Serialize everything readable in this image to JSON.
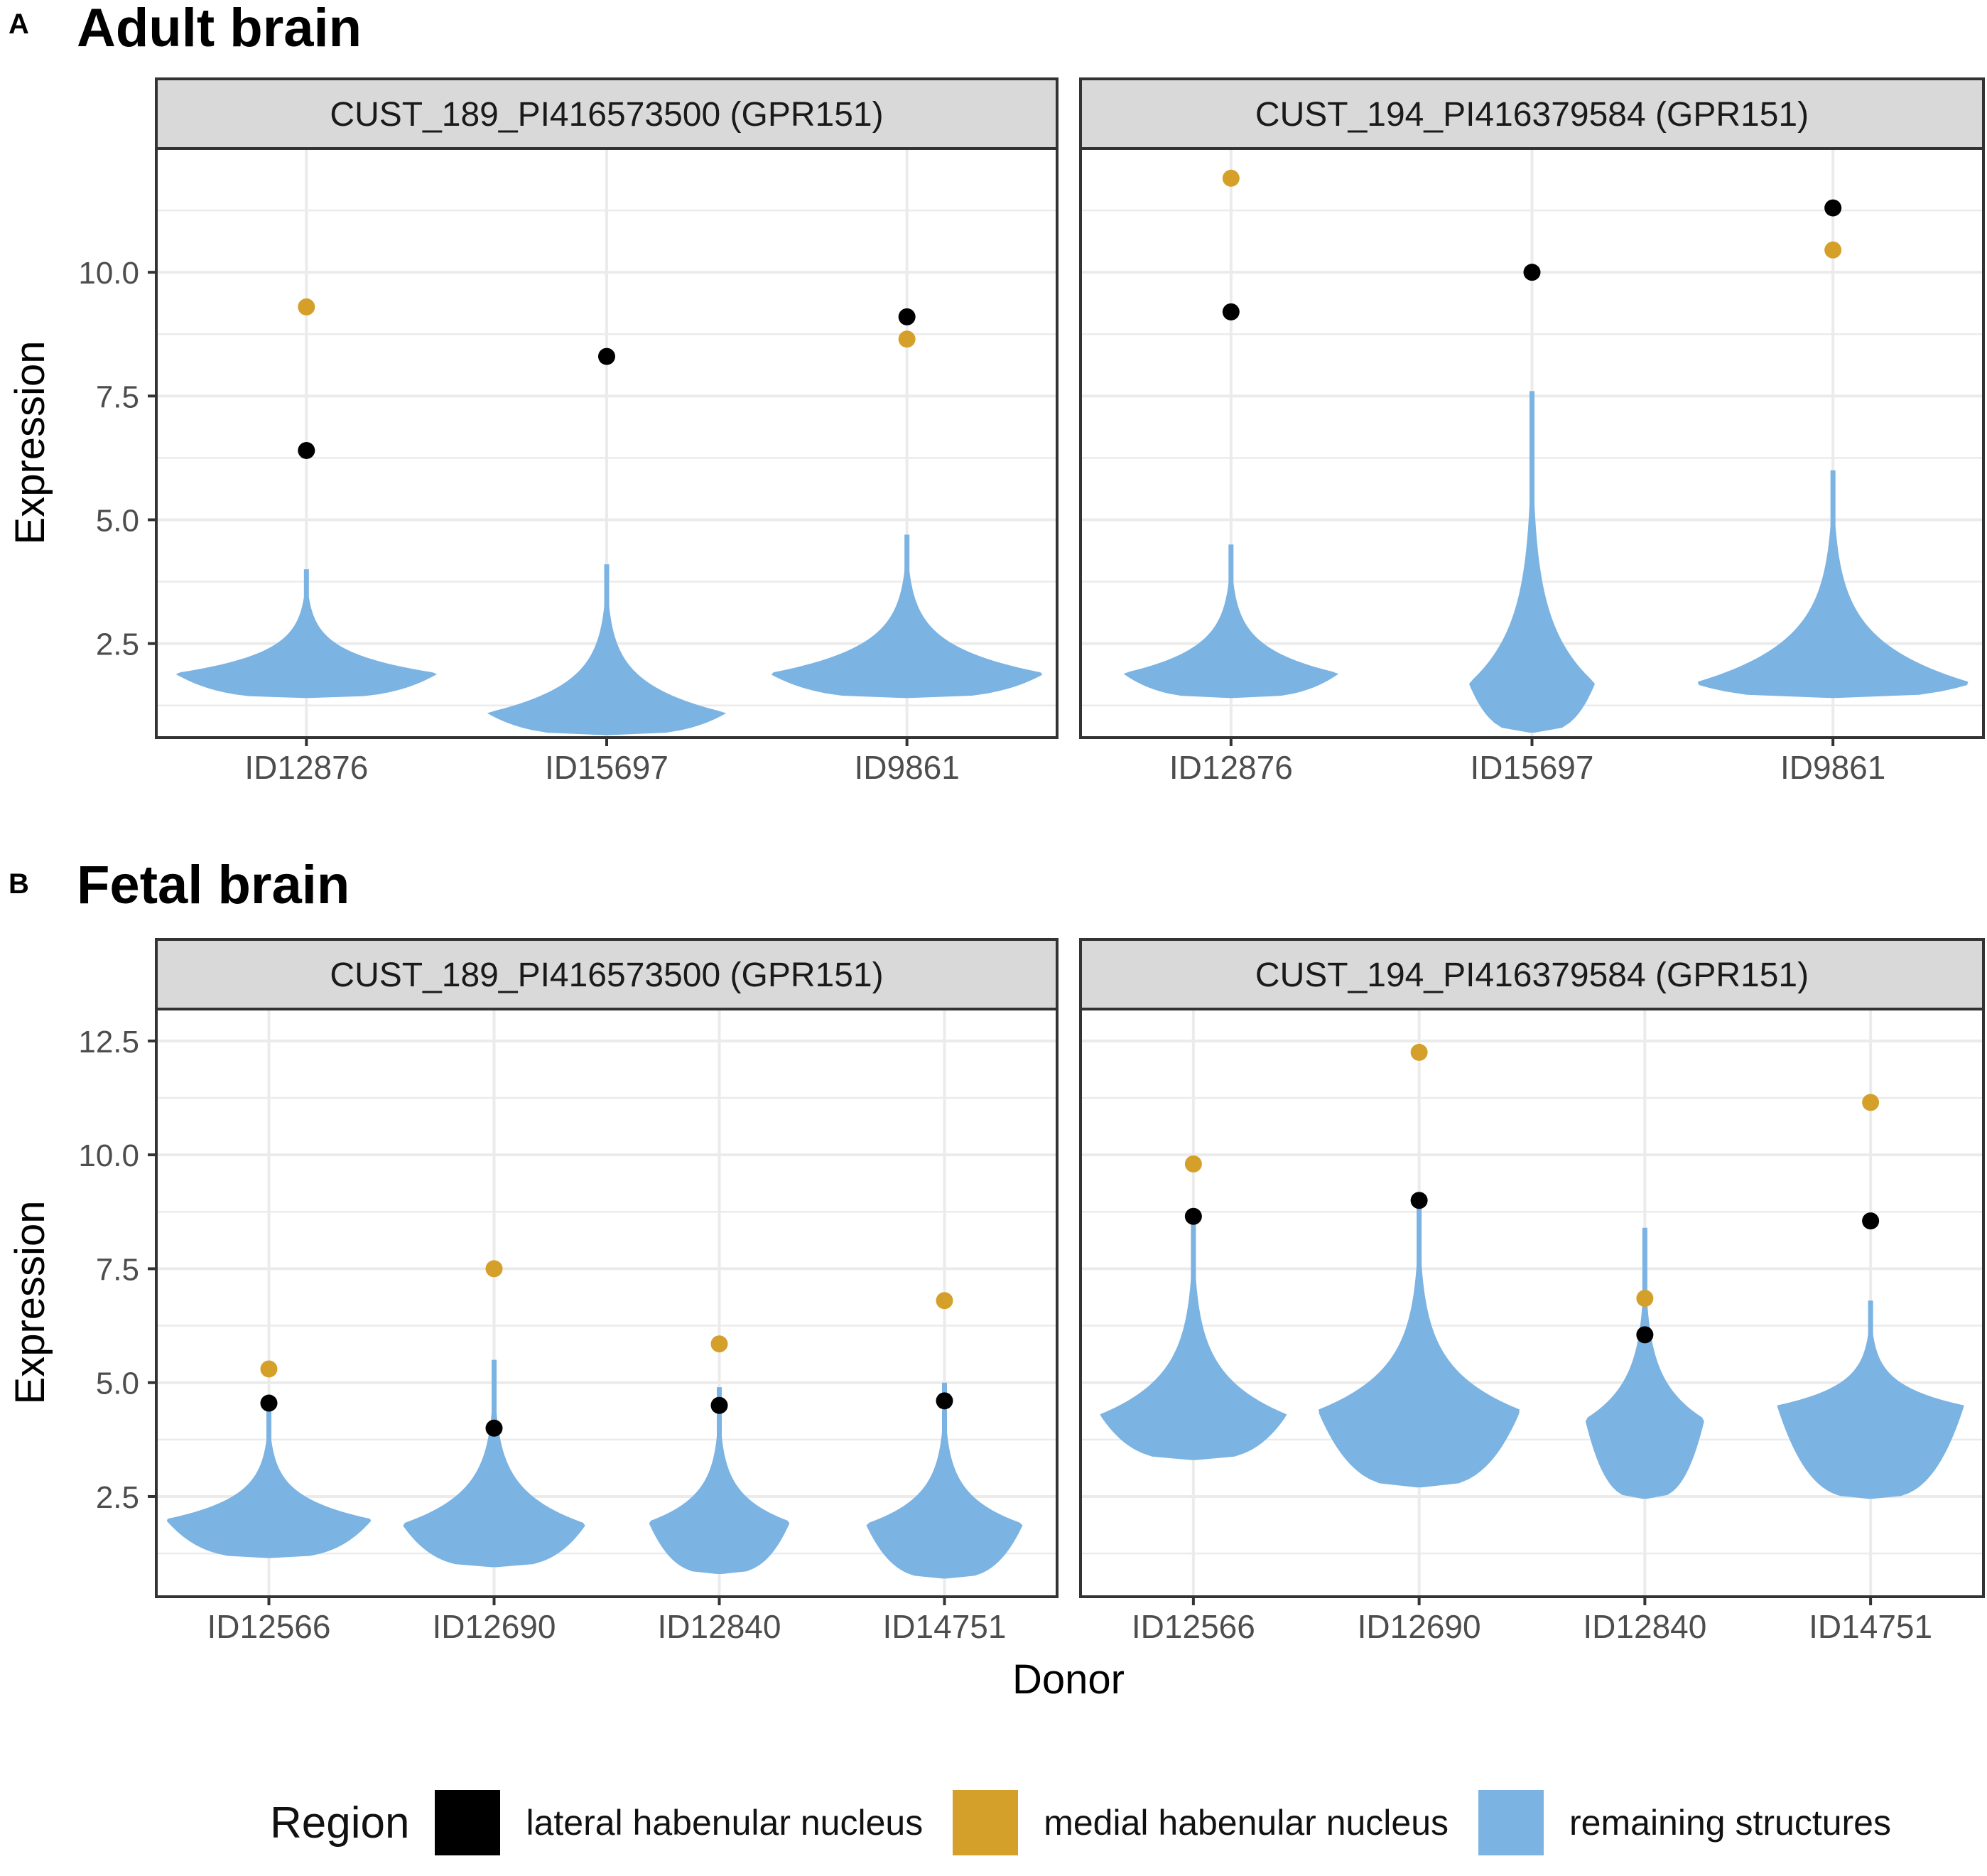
{
  "panel_a": {
    "letter": "A",
    "title": "Adult brain"
  },
  "panel_b": {
    "letter": "B",
    "title": "Fetal brain"
  },
  "y_axis_label": "Expression",
  "x_axis_label": "Donor",
  "legend": {
    "title": "Region",
    "items": [
      {
        "label": "lateral habenular nucleus",
        "color": "#000000"
      },
      {
        "label": "medial habenular nucleus",
        "color": "#D4A02A"
      },
      {
        "label": "remaining structures",
        "color": "#7BB3E3"
      }
    ]
  },
  "chart_data": [
    {
      "type": "violin",
      "section": "Adult brain",
      "facet_title": "CUST_189_PI416573500 (GPR151)",
      "categories": [
        "ID12876",
        "ID15697",
        "ID9861"
      ],
      "y_ticks": [
        "2.5",
        "5.0",
        "7.5",
        "10.0"
      ],
      "ylim": [
        0.6,
        12.5
      ],
      "xlabel": "",
      "ylabel": "Expression",
      "violins": [
        {
          "donor": "ID12876",
          "min": 1.4,
          "max": 4.0,
          "mode": 1.9,
          "width": 0.88
        },
        {
          "donor": "ID15697",
          "min": 0.65,
          "max": 4.1,
          "mode": 1.1,
          "width": 0.8
        },
        {
          "donor": "ID9861",
          "min": 1.4,
          "max": 4.7,
          "mode": 1.9,
          "width": 0.92
        }
      ],
      "points": {
        "lateral habenular nucleus": [
          6.4,
          8.3,
          9.1
        ],
        "medial habenular nucleus": [
          9.3,
          null,
          8.65
        ]
      }
    },
    {
      "type": "violin",
      "section": "Adult brain",
      "facet_title": "CUST_194_PI416379584 (GPR151)",
      "categories": [
        "ID12876",
        "ID15697",
        "ID9861"
      ],
      "y_ticks": [
        "2.5",
        "5.0",
        "7.5",
        "10.0"
      ],
      "ylim": [
        0.6,
        12.5
      ],
      "xlabel": "",
      "ylabel": "Expression",
      "violins": [
        {
          "donor": "ID12876",
          "min": 1.4,
          "max": 4.5,
          "mode": 1.9,
          "width": 0.72
        },
        {
          "donor": "ID15697",
          "min": 0.7,
          "max": 7.6,
          "mode": 1.7,
          "width": 0.42
        },
        {
          "donor": "ID9861",
          "min": 1.4,
          "max": 6.0,
          "mode": 1.7,
          "width": 0.93
        }
      ],
      "points": {
        "lateral habenular nucleus": [
          9.2,
          10.0,
          11.3
        ],
        "medial habenular nucleus": [
          11.9,
          null,
          10.45
        ]
      }
    },
    {
      "type": "violin",
      "section": "Fetal brain",
      "facet_title": "CUST_189_PI416573500 (GPR151)",
      "categories": [
        "ID12566",
        "ID12690",
        "ID12840",
        "ID14751"
      ],
      "y_ticks": [
        "2.5",
        "5.0",
        "7.5",
        "10.0",
        "12.5"
      ],
      "ylim": [
        0.3,
        13.2
      ],
      "xlabel": "",
      "ylabel": "Expression",
      "violins": [
        {
          "donor": "ID12566",
          "min": 1.15,
          "max": 4.5,
          "mode": 2.0,
          "width": 0.92
        },
        {
          "donor": "ID12690",
          "min": 0.95,
          "max": 5.5,
          "mode": 1.9,
          "width": 0.82
        },
        {
          "donor": "ID12840",
          "min": 0.8,
          "max": 4.9,
          "mode": 1.95,
          "width": 0.63
        },
        {
          "donor": "ID14751",
          "min": 0.7,
          "max": 5.0,
          "mode": 1.9,
          "width": 0.7
        }
      ],
      "points": {
        "lateral habenular nucleus": [
          4.55,
          4.0,
          4.5,
          4.6
        ],
        "medial habenular nucleus": [
          5.3,
          7.5,
          5.85,
          6.8
        ]
      }
    },
    {
      "type": "violin",
      "section": "Fetal brain",
      "facet_title": "CUST_194_PI416379584 (GPR151)",
      "categories": [
        "ID12566",
        "ID12690",
        "ID12840",
        "ID14751"
      ],
      "y_ticks": [
        "2.5",
        "5.0",
        "7.5",
        "10.0",
        "12.5"
      ],
      "ylim": [
        0.3,
        13.2
      ],
      "xlabel": "Donor",
      "ylabel": "Expression",
      "violins": [
        {
          "donor": "ID12566",
          "min": 3.3,
          "max": 8.7,
          "mode": 4.3,
          "width": 0.83
        },
        {
          "donor": "ID12690",
          "min": 2.7,
          "max": 9.0,
          "mode": 4.4,
          "width": 0.9
        },
        {
          "donor": "ID12840",
          "min": 2.45,
          "max": 8.4,
          "mode": 4.2,
          "width": 0.53
        },
        {
          "donor": "ID14751",
          "min": 2.45,
          "max": 6.8,
          "mode": 4.5,
          "width": 0.83
        }
      ],
      "points": {
        "lateral habenular nucleus": [
          8.65,
          9.0,
          6.05,
          8.55
        ],
        "medial habenular nucleus": [
          9.8,
          12.25,
          6.85,
          11.15
        ]
      }
    }
  ]
}
